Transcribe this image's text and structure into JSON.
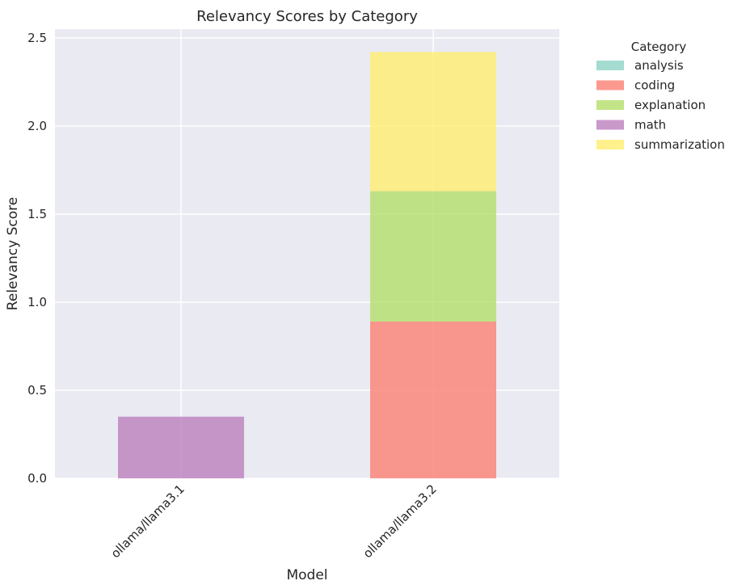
{
  "chart_data": {
    "type": "bar",
    "stacked": true,
    "title": "Relevancy Scores by Category",
    "xlabel": "Model",
    "ylabel": "Relevancy Score",
    "categories": [
      "ollama/llama3.1",
      "ollama/llama3.2"
    ],
    "ylim": [
      0,
      2.55
    ],
    "yticks": [
      0.0,
      0.5,
      1.0,
      1.5,
      2.0,
      2.5
    ],
    "ytick_labels": [
      "0.0",
      "0.5",
      "1.0",
      "1.5",
      "2.0",
      "2.5"
    ],
    "grid": true,
    "legend": {
      "title": "Category",
      "placement": "outside-right"
    },
    "series": [
      {
        "name": "analysis",
        "color": "#8dd3c7",
        "values": [
          0,
          0
        ]
      },
      {
        "name": "coding",
        "color": "#fb8072",
        "values": [
          0,
          0.89
        ]
      },
      {
        "name": "explanation",
        "color": "#b3de69",
        "values": [
          0,
          0.74
        ]
      },
      {
        "name": "math",
        "color": "#bc80bd",
        "values": [
          0.35,
          0
        ]
      },
      {
        "name": "summarization",
        "color": "#ffed6f",
        "values": [
          0,
          0.79
        ]
      }
    ]
  }
}
